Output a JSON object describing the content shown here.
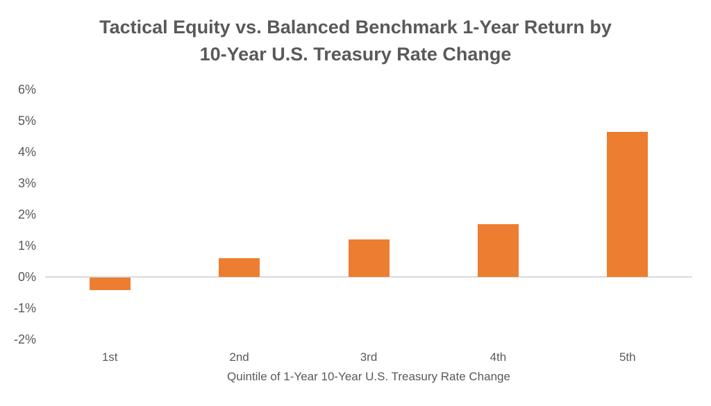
{
  "chart_data": {
    "type": "bar",
    "title": "Tactical Equity vs. Balanced Benchmark 1-Year Return by 10-Year U.S. Treasury Rate Change",
    "title_lines": [
      "Tactical Equity vs. Balanced Benchmark 1-Year Return by",
      "10-Year U.S. Treasury Rate Change"
    ],
    "categories": [
      "1st",
      "2nd",
      "3rd",
      "4th",
      "5th"
    ],
    "values": [
      -0.4,
      0.6,
      1.2,
      1.7,
      4.65
    ],
    "series_name": "Tactical Equity vs. Balanced Benchmark 1-Year Return",
    "xlabel": "Quintile of 1-Year 10-Year U.S. Treasury Rate Change",
    "ylabel": "",
    "ylim": [
      -2,
      6
    ],
    "ytick_step": 1,
    "ytick_labels": [
      "6%",
      "5%",
      "4%",
      "3%",
      "2%",
      "1%",
      "0%",
      "-1%",
      "-2%"
    ],
    "value_suffix": "%",
    "grid": "horizontal-zero-line-only",
    "legend": "none",
    "colors": {
      "bar": "#ed7d31",
      "text": "#595959",
      "gridline": "#d9d9d9",
      "background": "#ffffff"
    }
  }
}
